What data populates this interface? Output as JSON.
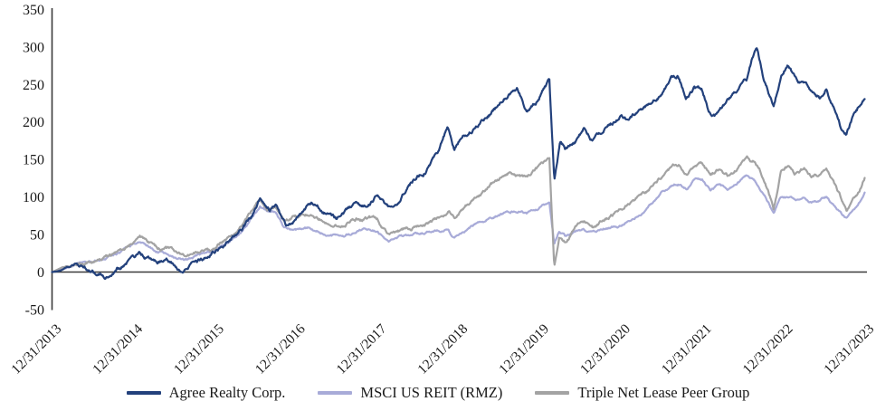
{
  "chart_data": {
    "type": "line",
    "title": "",
    "grid": false,
    "legend_position": "bottom-center",
    "background": "#ffffff",
    "axis_line_color": "#3a3a3a",
    "axis_text_color": "#1a1a1a",
    "y_axis": {
      "ticks": [
        350,
        300,
        250,
        200,
        150,
        100,
        50,
        0,
        -50
      ],
      "min": -50,
      "max": 350
    },
    "x_axis": {
      "tick_labels": [
        "12/31/2013",
        "12/31/2014",
        "12/31/2015",
        "12/31/2016",
        "12/31/2017",
        "12/31/2018",
        "12/31/2019",
        "12/31/2020",
        "12/31/2021",
        "12/31/2022",
        "12/31/2023"
      ],
      "unit": "years_since_2013-12-31",
      "range": [
        0,
        10
      ]
    },
    "series": [
      {
        "name": "Agree Realty Corp.",
        "color": "#23417c",
        "anchors": [
          [
            0,
            0
          ],
          [
            0.1,
            2
          ],
          [
            0.2,
            5
          ],
          [
            0.3,
            8
          ],
          [
            0.42,
            4
          ],
          [
            0.5,
            3
          ],
          [
            0.58,
            -2
          ],
          [
            0.65,
            -5
          ],
          [
            0.72,
            -1
          ],
          [
            0.8,
            7
          ],
          [
            0.9,
            10
          ],
          [
            1.0,
            15
          ],
          [
            1.08,
            22
          ],
          [
            1.2,
            15
          ],
          [
            1.3,
            13
          ],
          [
            1.42,
            16
          ],
          [
            1.55,
            6
          ],
          [
            1.62,
            2
          ],
          [
            1.72,
            10
          ],
          [
            1.85,
            16
          ],
          [
            2.0,
            28
          ],
          [
            2.1,
            36
          ],
          [
            2.2,
            46
          ],
          [
            2.35,
            60
          ],
          [
            2.45,
            72
          ],
          [
            2.56,
            100
          ],
          [
            2.62,
            88
          ],
          [
            2.68,
            82
          ],
          [
            2.75,
            92
          ],
          [
            2.82,
            74
          ],
          [
            2.88,
            63
          ],
          [
            3.0,
            76
          ],
          [
            3.1,
            83
          ],
          [
            3.2,
            90
          ],
          [
            3.35,
            80
          ],
          [
            3.5,
            70
          ],
          [
            3.62,
            80
          ],
          [
            3.75,
            92
          ],
          [
            3.85,
            88
          ],
          [
            4.0,
            102
          ],
          [
            4.08,
            95
          ],
          [
            4.14,
            85
          ],
          [
            4.3,
            105
          ],
          [
            4.45,
            122
          ],
          [
            4.6,
            138
          ],
          [
            4.75,
            158
          ],
          [
            4.87,
            192
          ],
          [
            4.95,
            163
          ],
          [
            5.05,
            180
          ],
          [
            5.2,
            192
          ],
          [
            5.35,
            208
          ],
          [
            5.5,
            222
          ],
          [
            5.62,
            238
          ],
          [
            5.72,
            245
          ],
          [
            5.85,
            214
          ],
          [
            5.95,
            226
          ],
          [
            6.05,
            245
          ],
          [
            6.12,
            257
          ],
          [
            6.18,
            118
          ],
          [
            6.25,
            168
          ],
          [
            6.32,
            160
          ],
          [
            6.45,
            172
          ],
          [
            6.55,
            190
          ],
          [
            6.65,
            178
          ],
          [
            6.78,
            190
          ],
          [
            6.9,
            200
          ],
          [
            7.0,
            209
          ],
          [
            7.1,
            200
          ],
          [
            7.22,
            212
          ],
          [
            7.35,
            225
          ],
          [
            7.5,
            238
          ],
          [
            7.62,
            255
          ],
          [
            7.7,
            258
          ],
          [
            7.8,
            232
          ],
          [
            7.9,
            247
          ],
          [
            8.0,
            240
          ],
          [
            8.08,
            214
          ],
          [
            8.18,
            210
          ],
          [
            8.3,
            226
          ],
          [
            8.42,
            240
          ],
          [
            8.55,
            255
          ],
          [
            8.62,
            288
          ],
          [
            8.67,
            298
          ],
          [
            8.75,
            262
          ],
          [
            8.82,
            240
          ],
          [
            8.88,
            226
          ],
          [
            8.97,
            262
          ],
          [
            9.05,
            278
          ],
          [
            9.15,
            258
          ],
          [
            9.25,
            250
          ],
          [
            9.35,
            240
          ],
          [
            9.45,
            233
          ],
          [
            9.53,
            250
          ],
          [
            9.62,
            220
          ],
          [
            9.7,
            195
          ],
          [
            9.77,
            184
          ],
          [
            9.85,
            205
          ],
          [
            9.93,
            220
          ],
          [
            10,
            236
          ]
        ]
      },
      {
        "name": "MSCI US REIT (RMZ)",
        "color": "#a8abd8",
        "anchors": [
          [
            0,
            0
          ],
          [
            0.1,
            3
          ],
          [
            0.2,
            6
          ],
          [
            0.3,
            10
          ],
          [
            0.45,
            13
          ],
          [
            0.6,
            16
          ],
          [
            0.72,
            19
          ],
          [
            0.85,
            26
          ],
          [
            1.0,
            36
          ],
          [
            1.08,
            43
          ],
          [
            1.2,
            33
          ],
          [
            1.3,
            28
          ],
          [
            1.45,
            26
          ],
          [
            1.55,
            21
          ],
          [
            1.65,
            17
          ],
          [
            1.78,
            21
          ],
          [
            1.9,
            24
          ],
          [
            2.0,
            27
          ],
          [
            2.12,
            35
          ],
          [
            2.25,
            45
          ],
          [
            2.4,
            62
          ],
          [
            2.5,
            80
          ],
          [
            2.56,
            88
          ],
          [
            2.65,
            78
          ],
          [
            2.75,
            80
          ],
          [
            2.85,
            58
          ],
          [
            3.0,
            55
          ],
          [
            3.15,
            58
          ],
          [
            3.3,
            54
          ],
          [
            3.45,
            50
          ],
          [
            3.6,
            47
          ],
          [
            3.75,
            54
          ],
          [
            3.9,
            57
          ],
          [
            4.0,
            56
          ],
          [
            4.08,
            47
          ],
          [
            4.14,
            40
          ],
          [
            4.3,
            46
          ],
          [
            4.45,
            50
          ],
          [
            4.6,
            54
          ],
          [
            4.75,
            58
          ],
          [
            4.88,
            56
          ],
          [
            4.95,
            44
          ],
          [
            5.05,
            52
          ],
          [
            5.2,
            62
          ],
          [
            5.35,
            70
          ],
          [
            5.5,
            76
          ],
          [
            5.62,
            81
          ],
          [
            5.75,
            83
          ],
          [
            5.85,
            80
          ],
          [
            5.95,
            86
          ],
          [
            6.05,
            90
          ],
          [
            6.12,
            92
          ],
          [
            6.18,
            37
          ],
          [
            6.24,
            55
          ],
          [
            6.32,
            47
          ],
          [
            6.45,
            52
          ],
          [
            6.55,
            55
          ],
          [
            6.65,
            50
          ],
          [
            6.78,
            56
          ],
          [
            6.9,
            60
          ],
          [
            7.0,
            62
          ],
          [
            7.12,
            70
          ],
          [
            7.25,
            80
          ],
          [
            7.4,
            94
          ],
          [
            7.5,
            108
          ],
          [
            7.62,
            115
          ],
          [
            7.72,
            118
          ],
          [
            7.82,
            110
          ],
          [
            7.92,
            124
          ],
          [
            8.0,
            122
          ],
          [
            8.1,
            108
          ],
          [
            8.22,
            116
          ],
          [
            8.32,
            110
          ],
          [
            8.45,
            120
          ],
          [
            8.55,
            128
          ],
          [
            8.65,
            122
          ],
          [
            8.75,
            105
          ],
          [
            8.82,
            92
          ],
          [
            8.88,
            77
          ],
          [
            8.97,
            98
          ],
          [
            9.05,
            101
          ],
          [
            9.15,
            95
          ],
          [
            9.25,
            102
          ],
          [
            9.35,
            94
          ],
          [
            9.45,
            96
          ],
          [
            9.53,
            100
          ],
          [
            9.62,
            88
          ],
          [
            9.7,
            78
          ],
          [
            9.78,
            69
          ],
          [
            9.85,
            82
          ],
          [
            9.93,
            94
          ],
          [
            10,
            106
          ]
        ]
      },
      {
        "name": "Triple Net Lease Peer Group",
        "color": "#a3a3a3",
        "anchors": [
          [
            0,
            0
          ],
          [
            0.1,
            4
          ],
          [
            0.2,
            8
          ],
          [
            0.3,
            12
          ],
          [
            0.45,
            16
          ],
          [
            0.6,
            19
          ],
          [
            0.72,
            22
          ],
          [
            0.85,
            30
          ],
          [
            1.0,
            40
          ],
          [
            1.08,
            46
          ],
          [
            1.2,
            36
          ],
          [
            1.3,
            30
          ],
          [
            1.45,
            29
          ],
          [
            1.55,
            24
          ],
          [
            1.65,
            20
          ],
          [
            1.78,
            25
          ],
          [
            1.9,
            28
          ],
          [
            2.0,
            32
          ],
          [
            2.12,
            42
          ],
          [
            2.25,
            52
          ],
          [
            2.4,
            72
          ],
          [
            2.5,
            88
          ],
          [
            2.56,
            97
          ],
          [
            2.65,
            85
          ],
          [
            2.75,
            88
          ],
          [
            2.85,
            68
          ],
          [
            3.0,
            72
          ],
          [
            3.15,
            78
          ],
          [
            3.3,
            72
          ],
          [
            3.45,
            68
          ],
          [
            3.6,
            64
          ],
          [
            3.75,
            71
          ],
          [
            3.9,
            73
          ],
          [
            4.0,
            70
          ],
          [
            4.08,
            58
          ],
          [
            4.14,
            48
          ],
          [
            4.3,
            55
          ],
          [
            4.45,
            60
          ],
          [
            4.6,
            66
          ],
          [
            4.75,
            74
          ],
          [
            4.88,
            82
          ],
          [
            4.95,
            74
          ],
          [
            5.05,
            82
          ],
          [
            5.2,
            100
          ],
          [
            5.35,
            112
          ],
          [
            5.5,
            124
          ],
          [
            5.62,
            133
          ],
          [
            5.75,
            128
          ],
          [
            5.85,
            126
          ],
          [
            5.95,
            136
          ],
          [
            6.05,
            144
          ],
          [
            6.12,
            151
          ],
          [
            6.18,
            7
          ],
          [
            6.24,
            48
          ],
          [
            6.32,
            40
          ],
          [
            6.45,
            58
          ],
          [
            6.55,
            64
          ],
          [
            6.65,
            57
          ],
          [
            6.78,
            68
          ],
          [
            6.9,
            76
          ],
          [
            7.0,
            85
          ],
          [
            7.12,
            94
          ],
          [
            7.25,
            104
          ],
          [
            7.4,
            116
          ],
          [
            7.5,
            126
          ],
          [
            7.62,
            138
          ],
          [
            7.72,
            142
          ],
          [
            7.82,
            132
          ],
          [
            7.92,
            145
          ],
          [
            8.0,
            143
          ],
          [
            8.1,
            129
          ],
          [
            8.22,
            138
          ],
          [
            8.32,
            130
          ],
          [
            8.45,
            140
          ],
          [
            8.55,
            152
          ],
          [
            8.65,
            147
          ],
          [
            8.75,
            128
          ],
          [
            8.82,
            108
          ],
          [
            8.88,
            87
          ],
          [
            8.97,
            134
          ],
          [
            9.05,
            140
          ],
          [
            9.15,
            130
          ],
          [
            9.25,
            138
          ],
          [
            9.35,
            128
          ],
          [
            9.45,
            130
          ],
          [
            9.53,
            136
          ],
          [
            9.62,
            118
          ],
          [
            9.7,
            98
          ],
          [
            9.78,
            82
          ],
          [
            9.85,
            95
          ],
          [
            9.93,
            108
          ],
          [
            10,
            128
          ]
        ]
      }
    ]
  },
  "legend": {
    "items": [
      {
        "label": "Agree Realty Corp."
      },
      {
        "label": "MSCI US REIT (RMZ)"
      },
      {
        "label": "Triple Net Lease Peer Group"
      }
    ]
  }
}
